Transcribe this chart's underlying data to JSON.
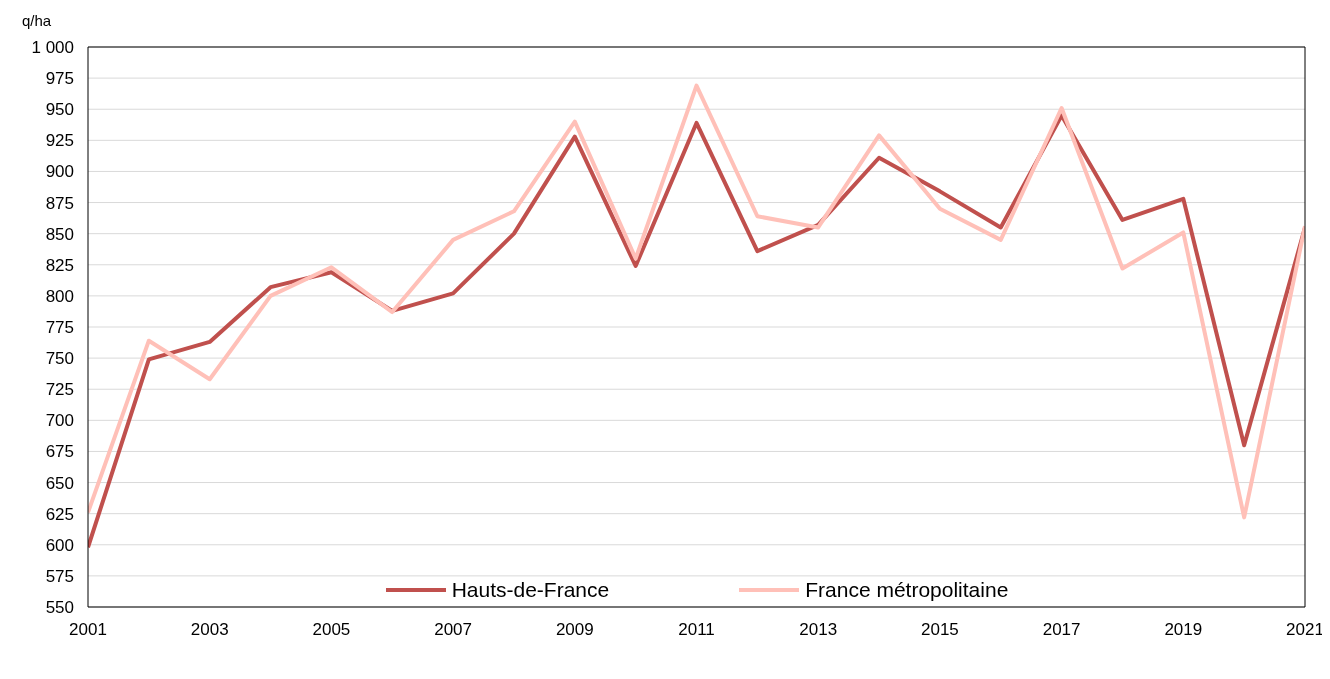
{
  "chart_data": {
    "type": "line",
    "ylabel": "q/ha",
    "x": [
      2001,
      2002,
      2003,
      2004,
      2005,
      2006,
      2007,
      2008,
      2009,
      2010,
      2011,
      2012,
      2013,
      2014,
      2015,
      2016,
      2017,
      2018,
      2019,
      2020,
      2021
    ],
    "series": [
      {
        "name": "Hauts-de-France",
        "color": "#c0504d",
        "values": [
          598,
          749,
          763,
          807,
          819,
          788,
          802,
          850,
          928,
          824,
          939,
          836,
          857,
          911,
          884,
          855,
          945,
          861,
          878,
          680,
          855
        ]
      },
      {
        "name": "France métropolitaine",
        "color": "#ffc0b8",
        "values": [
          626,
          764,
          733,
          800,
          823,
          787,
          845,
          868,
          940,
          830,
          969,
          864,
          855,
          929,
          870,
          845,
          951,
          822,
          851,
          622,
          856
        ]
      }
    ],
    "xlim": [
      2001,
      2021
    ],
    "xticks": [
      2001,
      2003,
      2005,
      2007,
      2009,
      2011,
      2013,
      2015,
      2017,
      2019,
      2021
    ],
    "ylim": [
      550,
      1000
    ],
    "yticks": [
      550,
      575,
      600,
      625,
      650,
      675,
      700,
      725,
      750,
      775,
      800,
      825,
      850,
      875,
      900,
      925,
      950,
      975,
      {
        "value": 1000,
        "label": "1 000"
      }
    ],
    "grid": "y",
    "legend": "bottom",
    "marker": "none",
    "line_style": "solid"
  }
}
